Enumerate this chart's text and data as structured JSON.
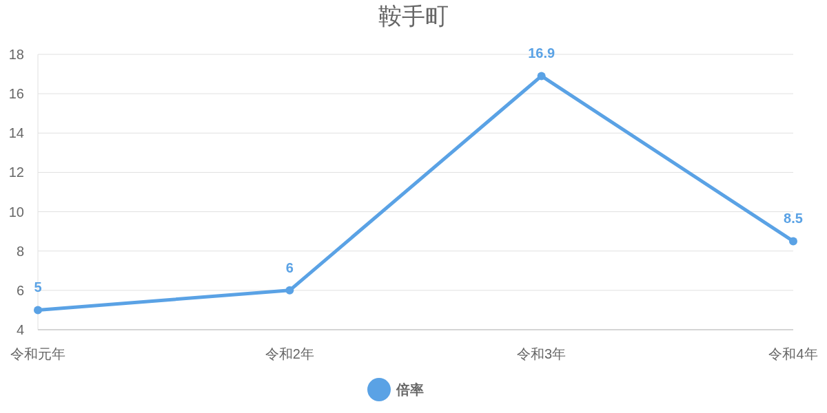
{
  "chart_data": {
    "type": "line",
    "title": "鞍手町",
    "categories": [
      "令和元年",
      "令和2年",
      "令和3年",
      "令和4年"
    ],
    "series": [
      {
        "name": "倍率",
        "color": "#5aa2e5",
        "values": [
          5,
          6,
          16.9,
          8.5
        ]
      }
    ],
    "ylim": [
      4,
      18
    ],
    "yticks": [
      4,
      6,
      8,
      10,
      12,
      14,
      16,
      18
    ],
    "grid": "y",
    "legend": "bottom",
    "marker": "circle",
    "line_style": "solid",
    "data_labels": true
  }
}
